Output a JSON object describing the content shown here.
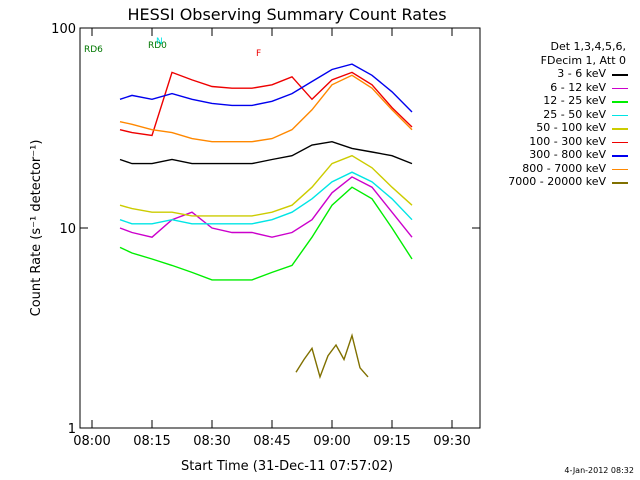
{
  "chart_data": {
    "type": "line",
    "title": "HESSI Observing Summary Count Rates",
    "xlabel": "Start Time (31-Dec-11 07:57:02)",
    "ylabel": "Count Rate (s⁻¹ detector⁻¹)",
    "yscale": "log",
    "ylim": [
      1,
      100
    ],
    "xlim": [
      "07:57",
      "09:37"
    ],
    "x_ticks": [
      "08:00",
      "08:15",
      "08:30",
      "08:45",
      "09:00",
      "09:15",
      "09:30"
    ],
    "y_ticks": [
      "1",
      "10",
      "100"
    ],
    "legend_header": [
      "Det 1,3,4,5,6,",
      "FDecim 1, Att 0"
    ],
    "legend_placement": "right, outside plot",
    "series": [
      {
        "name": "3 - 6 keV",
        "color": "#000000",
        "x": [
          "08:07",
          "08:10",
          "08:15",
          "08:20",
          "08:25",
          "08:30",
          "08:35",
          "08:40",
          "08:45",
          "08:50",
          "08:55",
          "09:00",
          "09:05",
          "09:10",
          "09:15",
          "09:20"
        ],
        "y": [
          22,
          21,
          21,
          22,
          21,
          21,
          21,
          21,
          22,
          23,
          26,
          27,
          25,
          24,
          23,
          21
        ]
      },
      {
        "name": "6 - 12 keV",
        "color": "#cc00cc",
        "x": [
          "08:07",
          "08:10",
          "08:15",
          "08:20",
          "08:25",
          "08:30",
          "08:35",
          "08:40",
          "08:45",
          "08:50",
          "08:55",
          "09:00",
          "09:05",
          "09:10",
          "09:15",
          "09:20"
        ],
        "y": [
          10,
          9.5,
          9,
          11,
          12,
          10,
          9.5,
          9.5,
          9,
          9.5,
          11,
          15,
          18,
          16,
          12,
          9
        ]
      },
      {
        "name": "12 - 25 keV",
        "color": "#00ee00",
        "x": [
          "08:07",
          "08:10",
          "08:15",
          "08:20",
          "08:25",
          "08:30",
          "08:35",
          "08:40",
          "08:45",
          "08:50",
          "08:55",
          "09:00",
          "09:05",
          "09:10",
          "09:15",
          "09:20"
        ],
        "y": [
          8,
          7.5,
          7,
          6.5,
          6,
          5.5,
          5.5,
          5.5,
          6,
          6.5,
          9,
          13,
          16,
          14,
          10,
          7
        ]
      },
      {
        "name": "25 - 50 keV",
        "color": "#00e5e5",
        "x": [
          "08:07",
          "08:10",
          "08:15",
          "08:20",
          "08:25",
          "08:30",
          "08:35",
          "08:40",
          "08:45",
          "08:50",
          "08:55",
          "09:00",
          "09:05",
          "09:10",
          "09:15",
          "09:20"
        ],
        "y": [
          11,
          10.5,
          10.5,
          11,
          10.5,
          10.5,
          10.5,
          10.5,
          11,
          12,
          14,
          17,
          19,
          17,
          14,
          11
        ]
      },
      {
        "name": "50 - 100 keV",
        "color": "#cccc00",
        "x": [
          "08:07",
          "08:10",
          "08:15",
          "08:20",
          "08:25",
          "08:30",
          "08:35",
          "08:40",
          "08:45",
          "08:50",
          "08:55",
          "09:00",
          "09:05",
          "09:10",
          "09:15",
          "09:20"
        ],
        "y": [
          13,
          12.5,
          12,
          12,
          11.5,
          11.5,
          11.5,
          11.5,
          12,
          13,
          16,
          21,
          23,
          20,
          16,
          13
        ]
      },
      {
        "name": "100 - 300 keV",
        "color": "#ee0000",
        "x": [
          "08:07",
          "08:10",
          "08:15",
          "08:20",
          "08:25",
          "08:30",
          "08:35",
          "08:40",
          "08:45",
          "08:50",
          "08:55",
          "09:00",
          "09:05",
          "09:10",
          "09:15",
          "09:20"
        ],
        "y": [
          31,
          30,
          29,
          60,
          55,
          51,
          50,
          50,
          52,
          57,
          44,
          55,
          60,
          52,
          40,
          32
        ]
      },
      {
        "name": "300 - 800 keV",
        "color": "#0000ee",
        "x": [
          "08:07",
          "08:10",
          "08:15",
          "08:20",
          "08:25",
          "08:30",
          "08:35",
          "08:40",
          "08:45",
          "08:50",
          "08:55",
          "09:00",
          "09:05",
          "09:10",
          "09:15",
          "09:20"
        ],
        "y": [
          44,
          46,
          44,
          47,
          44,
          42,
          41,
          41,
          43,
          47,
          54,
          62,
          66,
          58,
          48,
          38
        ]
      },
      {
        "name": "800 - 7000 keV",
        "color": "#ff8800",
        "x": [
          "08:07",
          "08:10",
          "08:15",
          "08:20",
          "08:25",
          "08:30",
          "08:35",
          "08:40",
          "08:45",
          "08:50",
          "08:55",
          "09:00",
          "09:05",
          "09:10",
          "09:15",
          "09:20"
        ],
        "y": [
          34,
          33,
          31,
          30,
          28,
          27,
          27,
          27,
          28,
          31,
          39,
          52,
          58,
          50,
          39,
          31
        ]
      },
      {
        "name": "7000 - 20000 keV",
        "color": "#807000",
        "x": [
          "08:51",
          "08:53",
          "08:55",
          "08:57",
          "08:59",
          "09:01",
          "09:03",
          "09:05",
          "09:07",
          "09:09"
        ],
        "y": [
          1.9,
          2.2,
          2.5,
          1.8,
          2.3,
          2.6,
          2.2,
          2.9,
          2.0,
          1.8
        ]
      }
    ],
    "annotations": [
      {
        "text": "N",
        "x": "08:15",
        "color": "#00e5e5"
      },
      {
        "text": "RD0",
        "x": "08:13",
        "color": "#007700"
      },
      {
        "text": "RD6",
        "x": "07:57",
        "color": "#007700"
      },
      {
        "text": "F",
        "x": "08:40",
        "color": "#ee0000"
      }
    ],
    "grid": false
  },
  "footer_date": "4-Jan-2012 08:32"
}
